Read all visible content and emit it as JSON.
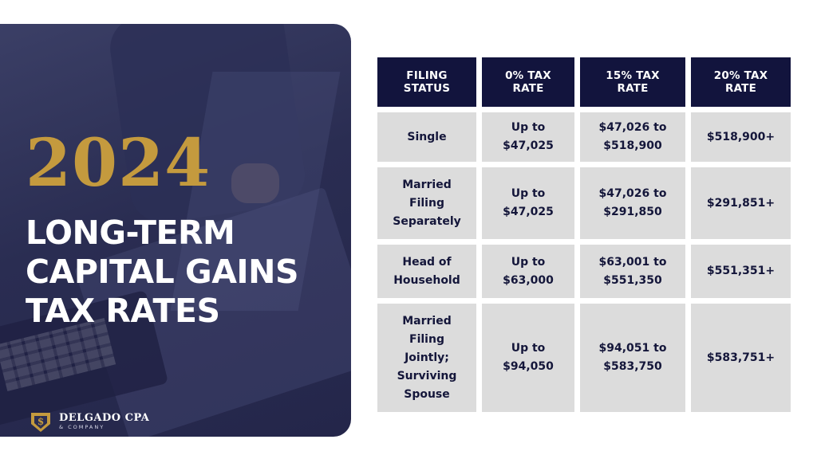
{
  "hero": {
    "year": "2024",
    "headline_lines": [
      "LONG-TERM",
      "CAPITAL GAINS",
      "TAX RATES"
    ]
  },
  "logo": {
    "name": "DELGADO CPA",
    "sub": "& COMPANY",
    "mark_symbol": "$",
    "colors": {
      "gold": "#c49a3e",
      "navy": "#12143d"
    }
  },
  "table": {
    "headers": [
      [
        "FILING",
        "STATUS"
      ],
      [
        "0% TAX",
        "RATE"
      ],
      [
        "15% TAX",
        "RATE"
      ],
      [
        "20% TAX",
        "RATE"
      ]
    ],
    "rows": [
      {
        "status": [
          "Single"
        ],
        "zero": [
          "Up to",
          "$47,025"
        ],
        "fifteen": [
          "$47,026 to",
          "$518,900"
        ],
        "twenty": [
          "$518,900+"
        ]
      },
      {
        "status": [
          "Married",
          "Filing",
          "Separately"
        ],
        "zero": [
          "Up to",
          "$47,025"
        ],
        "fifteen": [
          "$47,026 to",
          "$291,850"
        ],
        "twenty": [
          "$291,851+"
        ]
      },
      {
        "status": [
          "Head of",
          "Household"
        ],
        "zero": [
          "Up to",
          "$63,000"
        ],
        "fifteen": [
          "$63,001 to",
          "$551,350"
        ],
        "twenty": [
          "$551,351+"
        ]
      },
      {
        "status": [
          "Married",
          "Filing",
          "Jointly;",
          "Surviving",
          "Spouse"
        ],
        "zero": [
          "Up to",
          "$94,050"
        ],
        "fifteen": [
          "$94,051 to",
          "$583,750"
        ],
        "twenty": [
          "$583,751+"
        ]
      }
    ]
  },
  "colors": {
    "header_bg": "#12143d",
    "cell_bg": "#dcdcdc",
    "year_gold": "#c49a3e",
    "panel_navy": "#2a2d52"
  }
}
